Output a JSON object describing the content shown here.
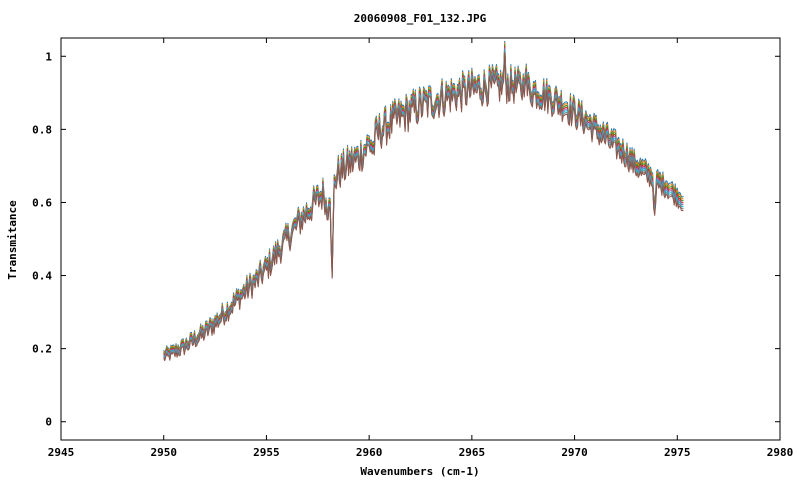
{
  "chart_data": {
    "type": "line",
    "title": "20060908_F01_132.JPG",
    "xlabel": "Wavenumbers (cm-1)",
    "ylabel": "Transmitance",
    "xlim": [
      2945,
      2980
    ],
    "ylim": [
      -0.05,
      1.05
    ],
    "xticks": [
      2945,
      2950,
      2955,
      2960,
      2965,
      2970,
      2975,
      2980
    ],
    "yticks": [
      0,
      0.2,
      0.4,
      0.6,
      0.8,
      1
    ],
    "ytick_labels": [
      "0",
      "0.2",
      "0.4",
      "0.6",
      "0.8",
      "1"
    ],
    "grid": false,
    "legend": "none",
    "series_count": 8,
    "series_offsets": [
      0.012,
      0.009,
      0.006,
      0.003,
      0.0,
      -0.003,
      -0.006,
      -0.009
    ],
    "series_colors": [
      "#1f77b4",
      "#ff7f0e",
      "#2ca02c",
      "#d62728",
      "#9467bd",
      "#17becf",
      "#7f7f7f",
      "#8c564b"
    ],
    "envelope": {
      "x": [
        2950.0,
        2950.5,
        2951.0,
        2951.5,
        2952.0,
        2952.5,
        2953.0,
        2953.5,
        2954.0,
        2954.5,
        2955.0,
        2955.5,
        2956.0,
        2956.5,
        2957.0,
        2957.5,
        2958.0,
        2958.5,
        2959.0,
        2959.5,
        2960.0,
        2960.5,
        2961.0,
        2961.5,
        2962.0,
        2962.5,
        2963.0,
        2963.5,
        2964.0,
        2964.5,
        2965.0,
        2965.5,
        2966.0,
        2966.5,
        2967.0,
        2967.5,
        2968.0,
        2968.5,
        2969.0,
        2969.5,
        2970.0,
        2970.5,
        2971.0,
        2971.5,
        2972.0,
        2972.5,
        2973.0,
        2973.5,
        2974.0,
        2974.5,
        2975.0,
        2975.3
      ],
      "y": [
        0.18,
        0.19,
        0.205,
        0.225,
        0.245,
        0.27,
        0.3,
        0.33,
        0.36,
        0.385,
        0.42,
        0.46,
        0.5,
        0.54,
        0.575,
        0.61,
        0.635,
        0.68,
        0.705,
        0.725,
        0.76,
        0.795,
        0.815,
        0.835,
        0.85,
        0.865,
        0.875,
        0.885,
        0.895,
        0.9,
        0.91,
        0.915,
        0.92,
        0.92,
        0.92,
        0.915,
        0.905,
        0.895,
        0.88,
        0.865,
        0.845,
        0.825,
        0.8,
        0.78,
        0.755,
        0.73,
        0.7,
        0.68,
        0.66,
        0.64,
        0.615,
        0.6
      ]
    },
    "dips": [
      {
        "x": 2958.2,
        "depth": 0.27,
        "width": 0.06
      },
      {
        "x": 2957.95,
        "depth": 0.06,
        "width": 0.08
      },
      {
        "x": 2973.9,
        "depth": 0.1,
        "width": 0.06
      },
      {
        "x": 2966.6,
        "depth": -0.07,
        "width": 0.05
      },
      {
        "x": 2967.6,
        "depth": -0.06,
        "width": 0.05
      },
      {
        "x": 2960.2,
        "depth": 0.03,
        "width": 0.08
      }
    ],
    "step": 0.05,
    "noise_amplitude": 0.035
  }
}
